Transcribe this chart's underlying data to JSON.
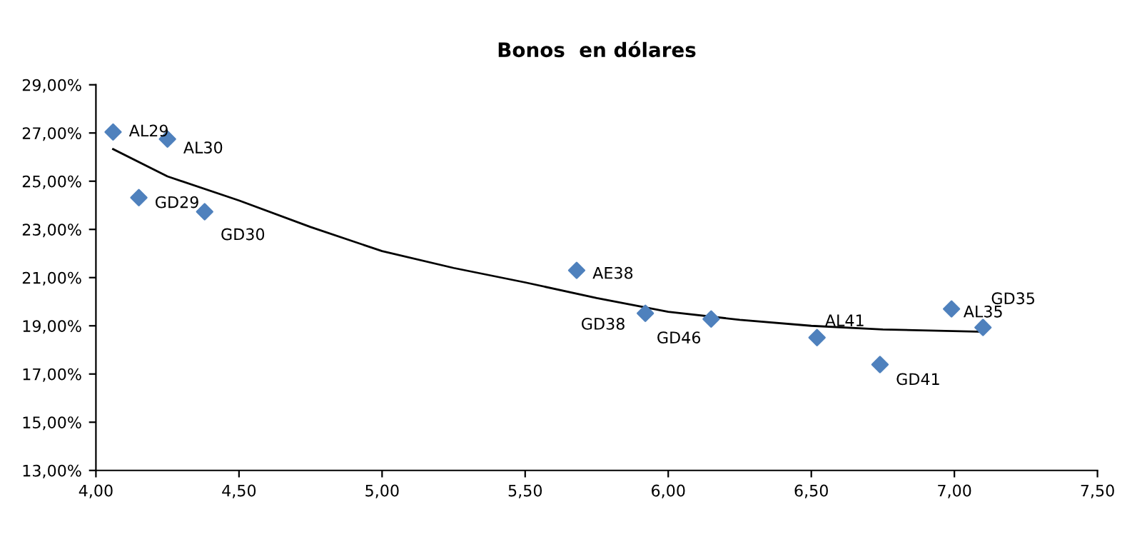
{
  "chart_data": {
    "type": "scatter",
    "title": "Bonos  en dólares",
    "series": [
      {
        "color": "#4f81bd",
        "marker": "diamond",
        "x": [
          4.06,
          4.15,
          4.25,
          4.38,
          5.68,
          5.92,
          6.15,
          6.52,
          6.74,
          6.99,
          7.1
        ],
        "values": [
          27.04,
          24.32,
          26.75,
          23.73,
          21.3,
          19.52,
          19.28,
          18.51,
          17.39,
          19.7,
          18.93
        ]
      },
      {
        "type": "line",
        "color": "#000000",
        "x": [
          4.06,
          4.25,
          4.5,
          4.75,
          5.0,
          5.25,
          5.5,
          5.75,
          6.0,
          6.25,
          6.5,
          6.75,
          7.1
        ],
        "values": [
          26.33,
          25.2,
          24.2,
          23.1,
          22.1,
          21.4,
          20.8,
          20.15,
          19.58,
          19.25,
          19.0,
          18.85,
          18.75
        ]
      }
    ],
    "annotations": [
      {
        "text": "AL29",
        "x": 4.06,
        "y": 27.04
      },
      {
        "text": "GD29",
        "x": 4.15,
        "y": 24.32
      },
      {
        "text": "AL30",
        "x": 4.25,
        "y": 26.75
      },
      {
        "text": "GD30",
        "x": 4.38,
        "y": 23.73
      },
      {
        "text": "AE38",
        "x": 5.68,
        "y": 21.3
      },
      {
        "text": "GD38",
        "x": 5.92,
        "y": 19.52
      },
      {
        "text": "GD46",
        "x": 6.15,
        "y": 19.28
      },
      {
        "text": "AL41",
        "x": 6.52,
        "y": 18.51
      },
      {
        "text": "GD41",
        "x": 6.74,
        "y": 17.39
      },
      {
        "text": "AL35",
        "x": 6.99,
        "y": 19.7
      },
      {
        "text": "GD35",
        "x": 7.1,
        "y": 18.93
      }
    ],
    "xlim": [
      4.0,
      7.5
    ],
    "xticks": [
      {
        "value": 4.0,
        "label": "4,00"
      },
      {
        "value": 4.5,
        "label": "4,50"
      },
      {
        "value": 5.0,
        "label": "5,00"
      },
      {
        "value": 5.5,
        "label": "5,50"
      },
      {
        "value": 6.0,
        "label": "6,00"
      },
      {
        "value": 6.5,
        "label": "6,50"
      },
      {
        "value": 7.0,
        "label": "7,00"
      },
      {
        "value": 7.5,
        "label": "7,50"
      }
    ],
    "ylim": [
      13,
      29
    ],
    "yticks": [
      {
        "value": 13,
        "label": "13,00%"
      },
      {
        "value": 15,
        "label": "15,00%"
      },
      {
        "value": 17,
        "label": "17,00%"
      },
      {
        "value": 19,
        "label": "19,00%"
      },
      {
        "value": 21,
        "label": "21,00%"
      },
      {
        "value": 23,
        "label": "23,00%"
      },
      {
        "value": 25,
        "label": "25,00%"
      },
      {
        "value": 27,
        "label": "27,00%"
      },
      {
        "value": 29,
        "label": "29,00%"
      }
    ],
    "grid": false,
    "legend": false
  }
}
